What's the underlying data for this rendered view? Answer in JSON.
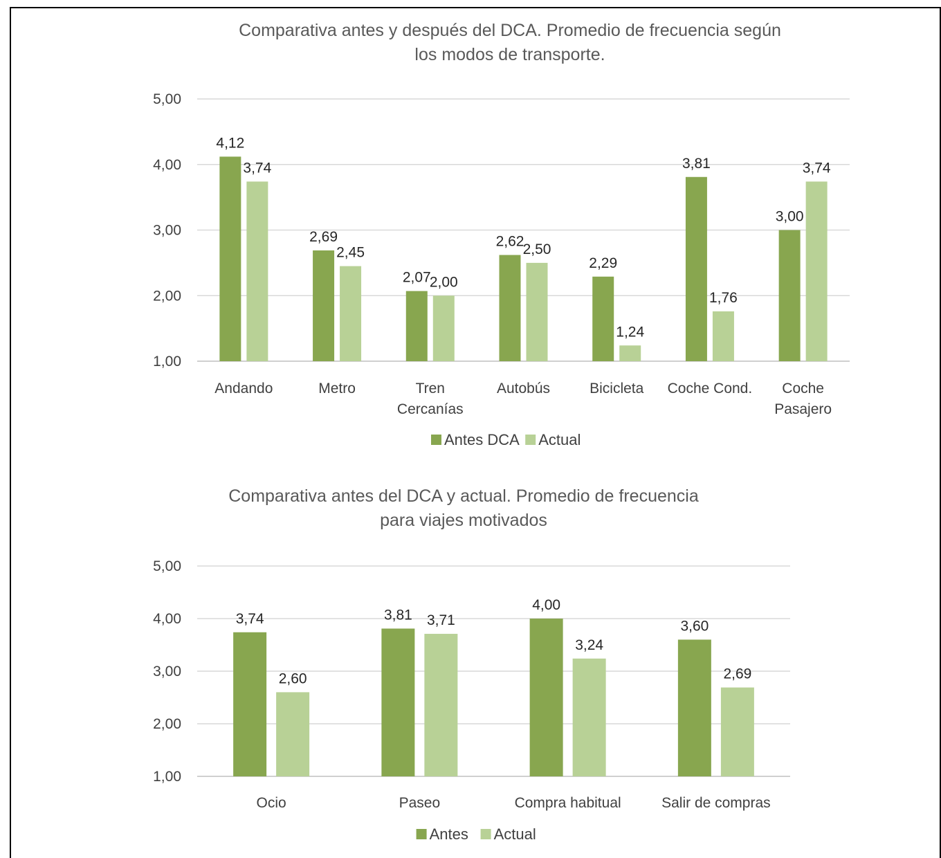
{
  "colors": {
    "antes": "#88a64f",
    "actual": "#b8d196",
    "grid": "#d9d9d9",
    "axis": "#bfbfbf"
  },
  "chart_data": [
    {
      "type": "bar",
      "title_lines": [
        "Comparativa antes y después del DCA. Promedio de frecuencia según",
        "los modos de transporte."
      ],
      "categories": [
        [
          "Andando"
        ],
        [
          "Metro"
        ],
        [
          "Tren",
          "Cercanías"
        ],
        [
          "Autobús"
        ],
        [
          "Bicicleta"
        ],
        [
          "Coche Cond."
        ],
        [
          "Coche",
          "Pasajero"
        ]
      ],
      "series": [
        {
          "name": "Antes DCA",
          "values": [
            4.12,
            2.69,
            2.07,
            2.62,
            2.29,
            3.81,
            3.0
          ],
          "labels": [
            "4,12",
            "2,69",
            "2,07",
            "2,62",
            "2,29",
            "3,81",
            "3,00"
          ]
        },
        {
          "name": "Actual",
          "values": [
            3.74,
            2.45,
            2.0,
            2.5,
            1.24,
            1.76,
            3.74
          ],
          "labels": [
            "3,74",
            "2,45",
            "2,00",
            "2,50",
            "1,24",
            "1,76",
            "3,74"
          ]
        }
      ],
      "ylim": [
        1,
        5
      ],
      "yticks": [
        "1,00",
        "2,00",
        "3,00",
        "4,00",
        "5,00"
      ],
      "grid": true,
      "legend_position": "bottom"
    },
    {
      "type": "bar",
      "title_lines": [
        "Comparativa antes del DCA y actual. Promedio de frecuencia",
        "para viajes motivados"
      ],
      "categories": [
        [
          "Ocio"
        ],
        [
          "Paseo"
        ],
        [
          "Compra habitual"
        ],
        [
          "Salir de compras"
        ]
      ],
      "series": [
        {
          "name": "Antes",
          "values": [
            3.74,
            3.81,
            4.0,
            3.6
          ],
          "labels": [
            "3,74",
            "3,81",
            "4,00",
            "3,60"
          ]
        },
        {
          "name": "Actual",
          "values": [
            2.6,
            3.71,
            3.24,
            2.69
          ],
          "labels": [
            "2,60",
            "3,71",
            "3,24",
            "2,69"
          ]
        }
      ],
      "ylim": [
        1,
        5
      ],
      "yticks": [
        "1,00",
        "2,00",
        "3,00",
        "4,00",
        "5,00"
      ],
      "grid": true,
      "legend_position": "bottom"
    }
  ]
}
